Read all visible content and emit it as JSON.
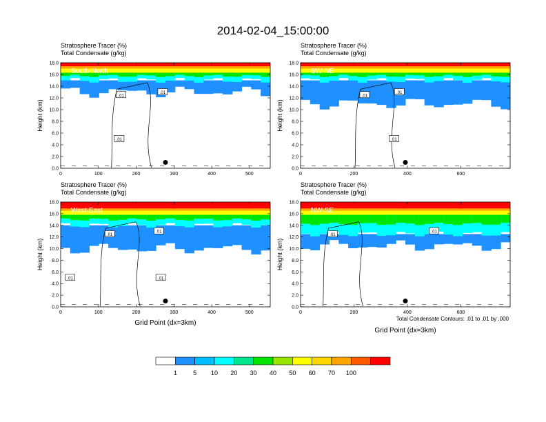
{
  "title": "2014-02-04_15:00:00",
  "panel_line1": "Stratosphere Tracer   (%)",
  "panel_line2": "Total Condensate   (g/kg)",
  "ylabel": "Height (km)",
  "xlabel": "Grid Point (dx=3km)",
  "contour_note": "Total Condensate Contours: .01 to .01 by .000",
  "contour_label": ".01",
  "colorbar": {
    "levels": [
      "1",
      "5",
      "10",
      "20",
      "30",
      "40",
      "50",
      "60",
      "70",
      "100"
    ],
    "colors": [
      "#ffffff",
      "#1e90ff",
      "#00bfff",
      "#00ffff",
      "#00e68c",
      "#00e600",
      "#99e600",
      "#ffff00",
      "#ffd700",
      "#ffa500",
      "#ff5a00",
      "#ff0000"
    ]
  },
  "chart_data": [
    {
      "type": "heatmap",
      "panel": "South-North",
      "ylim": [
        0,
        18
      ],
      "yticks": [
        "0.0",
        "2.0",
        "4.0",
        "6.0",
        "8.0",
        "10.0",
        "12.0",
        "14.0",
        "16.0",
        "18.0"
      ],
      "xlim": [
        0,
        555
      ],
      "xticks": [
        0,
        100,
        200,
        300,
        400,
        500
      ],
      "tracer_bands_km": {
        "top": 18.0,
        "red_bottom": 16.5,
        "green_bottom": 15.0,
        "blue_bottom": 13.0
      },
      "contour_labels_x": [
        160,
        270,
        155
      ]
    },
    {
      "type": "heatmap",
      "panel": "SW-NE",
      "ylim": [
        0,
        18
      ],
      "yticks": [
        "0.0",
        "2.0",
        "4.0",
        "6.0",
        "8.0",
        "10.0",
        "12.0",
        "14.0",
        "16.0",
        "18.0"
      ],
      "xlim": [
        0,
        785
      ],
      "xticks": [
        0,
        200,
        400,
        600
      ],
      "tracer_bands_km": {
        "top": 18.0,
        "red_bottom": 16.5,
        "green_bottom": 15.0,
        "blue_bottom": 11.0
      },
      "contour_labels_x": [
        240,
        370,
        350
      ]
    },
    {
      "type": "heatmap",
      "panel": "West-East",
      "ylim": [
        0,
        18
      ],
      "yticks": [
        "0.0",
        "2.0",
        "4.0",
        "6.0",
        "8.0",
        "10.0",
        "12.0",
        "14.0",
        "16.0",
        "18.0"
      ],
      "xlim": [
        0,
        555
      ],
      "xticks": [
        0,
        100,
        200,
        300,
        400,
        500
      ],
      "tracer_bands_km": {
        "top": 18.0,
        "red_bottom": 16.0,
        "green_bottom": 14.0,
        "blue_bottom": 10.0
      },
      "contour_labels_x": [
        130,
        260,
        25,
        265
      ]
    },
    {
      "type": "heatmap",
      "panel": "NW-SE",
      "ylim": [
        0,
        18
      ],
      "yticks": [
        "0.0",
        "2.0",
        "4.0",
        "6.0",
        "8.0",
        "10.0",
        "12.0",
        "14.0",
        "16.0",
        "18.0"
      ],
      "xlim": [
        0,
        785
      ],
      "xticks": [
        0,
        200,
        400,
        600
      ],
      "tracer_bands_km": {
        "top": 18.0,
        "red_bottom": 16.0,
        "green_bottom": 12.5,
        "blue_bottom": 10.5
      },
      "contour_labels_x": [
        120,
        500
      ]
    }
  ]
}
